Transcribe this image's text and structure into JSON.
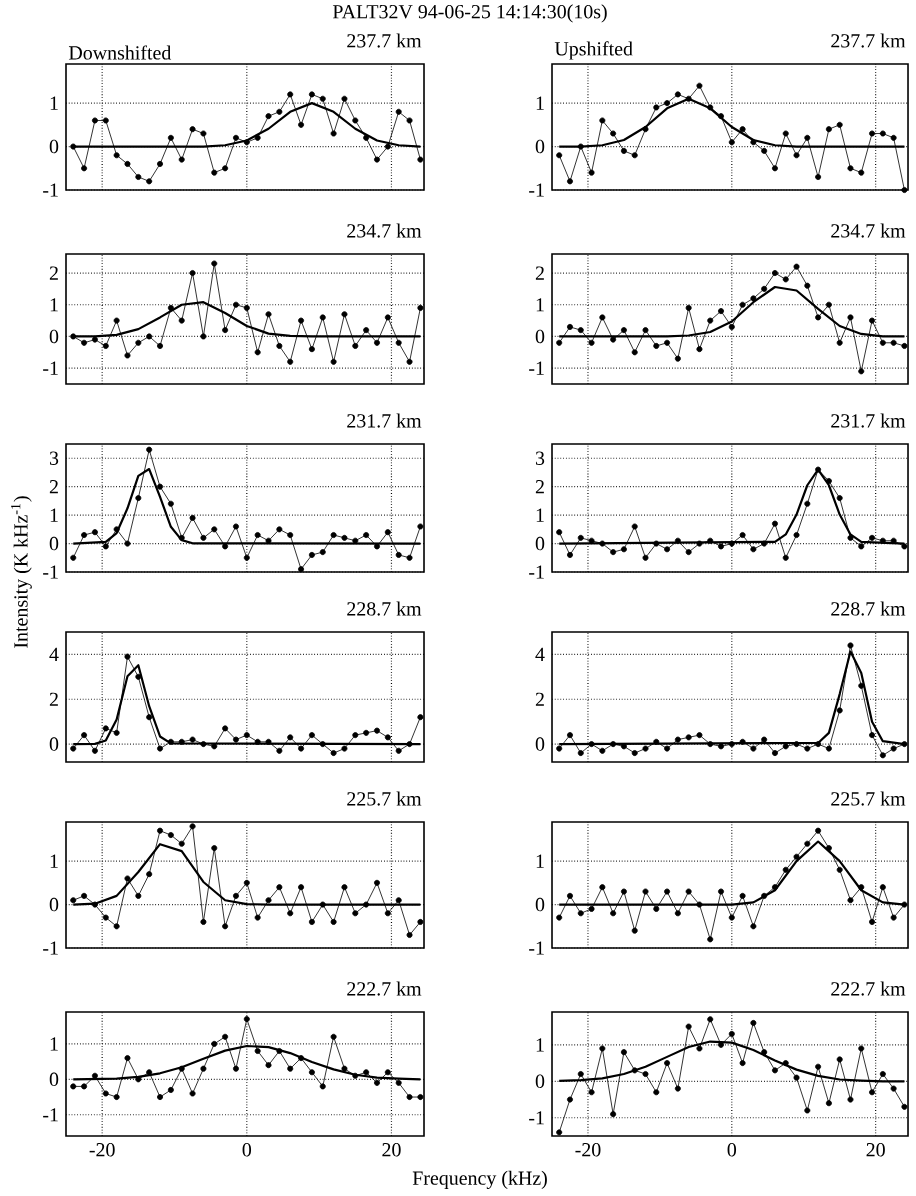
{
  "chart_data": [
    {
      "type": "line",
      "title": "237.7 km",
      "annotations": [
        "PALT32V 94-06-25 14:14:30(10s)",
        "Downshifted"
      ],
      "xlim": [
        -25,
        24.5
      ],
      "ylim": [
        -1,
        1.9
      ],
      "xticks": [
        -20,
        0,
        20
      ],
      "yticks": [
        -1,
        0,
        1
      ],
      "grid": true,
      "tick_labels": "y",
      "x": [
        -24,
        -22.5,
        -21,
        -19.5,
        -18,
        -16.5,
        -15,
        -13.5,
        -12,
        -10.5,
        -9,
        -7.5,
        -6,
        -4.5,
        -3,
        -1.5,
        0,
        1.5,
        3,
        4.5,
        6,
        7.5,
        9,
        10.5,
        12,
        13.5,
        15,
        16.5,
        18,
        19.5,
        21,
        22.5,
        24
      ],
      "series": [
        {
          "type": "line",
          "color": "#000000",
          "marker": "circle",
          "values": [
            0.0,
            -0.5,
            0.6,
            0.6,
            -0.2,
            -0.4,
            -0.7,
            -0.8,
            -0.4,
            0.2,
            -0.3,
            0.4,
            0.3,
            -0.6,
            -0.5,
            0.2,
            0.1,
            0.2,
            0.7,
            0.8,
            1.2,
            0.5,
            1.2,
            1.1,
            0.3,
            1.1,
            0.6,
            0.2,
            -0.3,
            0.0,
            0.8,
            0.6,
            -0.3
          ]
        },
        {
          "type": "line",
          "color": "#000000",
          "marker": "none",
          "x": [
            -24,
            -21,
            -18,
            -15,
            -12,
            -9,
            -6,
            -3,
            0,
            3,
            6,
            9,
            12,
            15,
            18,
            21,
            24
          ],
          "values": [
            0,
            0,
            0,
            0,
            0,
            0,
            0,
            0.03,
            0.14,
            0.41,
            0.8,
            1.0,
            0.8,
            0.41,
            0.14,
            0.03,
            0
          ]
        }
      ]
    },
    {
      "type": "line",
      "title": "237.7 km",
      "annotations": [
        "Upshifted"
      ],
      "xlim": [
        -25,
        24.5
      ],
      "ylim": [
        -1,
        1.9
      ],
      "xticks": [
        -20,
        0,
        20
      ],
      "yticks": [
        -1,
        0,
        1
      ],
      "grid": true,
      "tick_labels": "y",
      "x": [
        -24,
        -22.5,
        -21,
        -19.5,
        -18,
        -16.5,
        -15,
        -13.5,
        -12,
        -10.5,
        -9,
        -7.5,
        -6,
        -4.5,
        -3,
        -1.5,
        0,
        1.5,
        3,
        4.5,
        6,
        7.5,
        9,
        10.5,
        12,
        13.5,
        15,
        16.5,
        18,
        19.5,
        21,
        22.5,
        24
      ],
      "series": [
        {
          "type": "line",
          "color": "#000000",
          "marker": "circle",
          "values": [
            -0.2,
            -0.8,
            0.0,
            -0.6,
            0.6,
            0.3,
            -0.1,
            -0.2,
            0.4,
            0.9,
            1.0,
            1.2,
            1.1,
            1.4,
            0.9,
            0.7,
            0.1,
            0.4,
            0.1,
            -0.1,
            -0.5,
            0.3,
            -0.2,
            0.2,
            -0.7,
            0.4,
            0.5,
            -0.5,
            -0.6,
            0.3,
            0.3,
            0.2,
            -1.0
          ]
        },
        {
          "type": "line",
          "color": "#000000",
          "marker": "none",
          "x": [
            -24,
            -21,
            -18,
            -15,
            -12,
            -9,
            -6,
            -3,
            0,
            3,
            6,
            9,
            12,
            15,
            18,
            21,
            24
          ],
          "values": [
            0,
            0,
            0.03,
            0.15,
            0.45,
            0.88,
            1.1,
            0.88,
            0.45,
            0.15,
            0.03,
            0,
            0,
            0,
            0,
            0,
            0
          ]
        }
      ]
    },
    {
      "type": "line",
      "title": "234.7 km",
      "xlim": [
        -25,
        24.5
      ],
      "ylim": [
        -1.5,
        2.6
      ],
      "xticks": [
        -20,
        0,
        20
      ],
      "yticks": [
        -1,
        0,
        1,
        2
      ],
      "grid": true,
      "tick_labels": "y",
      "x": [
        -24,
        -22.5,
        -21,
        -19.5,
        -18,
        -16.5,
        -15,
        -13.5,
        -12,
        -10.5,
        -9,
        -7.5,
        -6,
        -4.5,
        -3,
        -1.5,
        0,
        1.5,
        3,
        4.5,
        6,
        7.5,
        9,
        10.5,
        12,
        13.5,
        15,
        16.5,
        18,
        19.5,
        21,
        22.5,
        24
      ],
      "series": [
        {
          "type": "line",
          "color": "#000000",
          "marker": "circle",
          "values": [
            0.0,
            -0.2,
            -0.1,
            -0.3,
            0.5,
            -0.6,
            -0.2,
            0.0,
            -0.3,
            0.9,
            0.5,
            2.0,
            0.0,
            2.3,
            0.2,
            1.0,
            0.9,
            -0.5,
            0.7,
            -0.3,
            -0.8,
            0.5,
            -0.4,
            0.6,
            -0.8,
            0.7,
            -0.3,
            0.2,
            -0.2,
            0.6,
            -0.2,
            -0.8,
            0.9
          ]
        },
        {
          "type": "line",
          "color": "#000000",
          "marker": "none",
          "x": [
            -24,
            -21,
            -18,
            -15,
            -12,
            -9,
            -6,
            -3,
            0,
            3,
            6,
            9,
            12,
            15,
            18,
            21,
            24
          ],
          "values": [
            0,
            0,
            0.05,
            0.23,
            0.6,
            1.0,
            1.08,
            0.74,
            0.33,
            0.09,
            0.02,
            0,
            0,
            0,
            0,
            0,
            0
          ]
        }
      ]
    },
    {
      "type": "line",
      "title": "234.7 km",
      "xlim": [
        -25,
        24.5
      ],
      "ylim": [
        -1.5,
        2.6
      ],
      "xticks": [
        -20,
        0,
        20
      ],
      "yticks": [
        -1,
        0,
        1,
        2
      ],
      "grid": true,
      "tick_labels": "y",
      "x": [
        -24,
        -22.5,
        -21,
        -19.5,
        -18,
        -16.5,
        -15,
        -13.5,
        -12,
        -10.5,
        -9,
        -7.5,
        -6,
        -4.5,
        -3,
        -1.5,
        0,
        1.5,
        3,
        4.5,
        6,
        7.5,
        9,
        10.5,
        12,
        13.5,
        15,
        16.5,
        18,
        19.5,
        21,
        22.5,
        24
      ],
      "series": [
        {
          "type": "line",
          "color": "#000000",
          "marker": "circle",
          "values": [
            -0.2,
            0.3,
            0.2,
            -0.2,
            0.6,
            -0.1,
            0.2,
            -0.5,
            0.2,
            -0.3,
            -0.2,
            -0.7,
            0.9,
            -0.4,
            0.5,
            0.8,
            0.3,
            1.0,
            1.2,
            1.5,
            2.0,
            1.8,
            2.2,
            1.6,
            0.6,
            1.0,
            -0.2,
            0.6,
            -1.1,
            0.5,
            -0.2,
            -0.2,
            -0.3
          ]
        },
        {
          "type": "line",
          "color": "#000000",
          "marker": "none",
          "x": [
            -24,
            -21,
            -18,
            -15,
            -12,
            -9,
            -6,
            -3,
            0,
            3,
            6,
            9,
            12,
            15,
            18,
            21,
            24
          ],
          "values": [
            0,
            0,
            0,
            0,
            0,
            0,
            0.03,
            0.14,
            0.47,
            1.08,
            1.56,
            1.45,
            0.87,
            0.33,
            0.08,
            0,
            0
          ]
        }
      ]
    },
    {
      "type": "line",
      "title": "231.7 km",
      "ylabel": "Intensity (K kHz$^{-1}$)",
      "xlim": [
        -25,
        24.5
      ],
      "ylim": [
        -1,
        3.5
      ],
      "xticks": [
        -20,
        0,
        20
      ],
      "yticks": [
        -1,
        0,
        1,
        2,
        3
      ],
      "grid": true,
      "tick_labels": "y",
      "x": [
        -24,
        -22.5,
        -21,
        -19.5,
        -18,
        -16.5,
        -15,
        -13.5,
        -12,
        -10.5,
        -9,
        -7.5,
        -6,
        -4.5,
        -3,
        -1.5,
        0,
        1.5,
        3,
        4.5,
        6,
        7.5,
        9,
        10.5,
        12,
        13.5,
        15,
        16.5,
        18,
        19.5,
        21,
        22.5,
        24
      ],
      "series": [
        {
          "type": "line",
          "color": "#000000",
          "marker": "circle",
          "values": [
            -0.5,
            0.3,
            0.4,
            -0.1,
            0.5,
            0.0,
            1.6,
            3.3,
            2.0,
            1.4,
            0.2,
            0.9,
            0.2,
            0.5,
            -0.1,
            0.6,
            -0.5,
            0.3,
            0.1,
            0.5,
            0.3,
            -0.9,
            -0.4,
            -0.3,
            0.3,
            0.2,
            0.1,
            0.3,
            -0.1,
            0.4,
            -0.4,
            -0.5,
            0.6
          ]
        },
        {
          "type": "line",
          "color": "#000000",
          "marker": "none",
          "x": [
            -24,
            -19.5,
            -18,
            -16.5,
            -15,
            -13.5,
            -12,
            -10.5,
            -9,
            -7.5,
            24
          ],
          "values": [
            0,
            0.06,
            0.37,
            1.24,
            2.38,
            2.62,
            1.64,
            0.59,
            0.12,
            0.01,
            0
          ]
        }
      ]
    },
    {
      "type": "line",
      "title": "231.7 km",
      "xlim": [
        -25,
        24.5
      ],
      "ylim": [
        -1,
        3.5
      ],
      "xticks": [
        -20,
        0,
        20
      ],
      "yticks": [
        -1,
        0,
        1,
        2,
        3
      ],
      "grid": true,
      "tick_labels": "y",
      "x": [
        -24,
        -22.5,
        -21,
        -19.5,
        -18,
        -16.5,
        -15,
        -13.5,
        -12,
        -10.5,
        -9,
        -7.5,
        -6,
        -4.5,
        -3,
        -1.5,
        0,
        1.5,
        3,
        4.5,
        6,
        7.5,
        9,
        10.5,
        12,
        13.5,
        15,
        16.5,
        18,
        19.5,
        21,
        22.5,
        24
      ],
      "series": [
        {
          "type": "line",
          "color": "#000000",
          "marker": "circle",
          "values": [
            0.4,
            -0.4,
            0.2,
            0.1,
            0.0,
            -0.3,
            -0.2,
            0.6,
            -0.5,
            0.0,
            -0.2,
            0.1,
            -0.3,
            0.0,
            0.1,
            -0.1,
            0.0,
            0.3,
            -0.2,
            0.0,
            0.7,
            -0.5,
            0.3,
            1.4,
            2.6,
            2.2,
            1.6,
            0.2,
            -0.1,
            0.2,
            0.1,
            0.1,
            -0.1
          ]
        },
        {
          "type": "line",
          "color": "#000000",
          "marker": "none",
          "x": [
            -24,
            6,
            7.5,
            9,
            10.5,
            12,
            13.5,
            15,
            16.5,
            18,
            24
          ],
          "values": [
            0,
            0.06,
            0.32,
            1.02,
            2.05,
            2.6,
            2.05,
            1.02,
            0.32,
            0.06,
            0
          ]
        }
      ]
    },
    {
      "type": "line",
      "title": "228.7 km",
      "xlim": [
        -25,
        24.5
      ],
      "ylim": [
        -0.8,
        5
      ],
      "xticks": [
        -20,
        0,
        20
      ],
      "yticks": [
        0,
        2,
        4
      ],
      "grid": true,
      "tick_labels": "y",
      "x": [
        -24,
        -22.5,
        -21,
        -19.5,
        -18,
        -16.5,
        -15,
        -13.5,
        -12,
        -10.5,
        -9,
        -7.5,
        -6,
        -4.5,
        -3,
        -1.5,
        0,
        1.5,
        3,
        4.5,
        6,
        7.5,
        9,
        10.5,
        12,
        13.5,
        15,
        16.5,
        18,
        19.5,
        21,
        22.5,
        24
      ],
      "series": [
        {
          "type": "line",
          "color": "#000000",
          "marker": "circle",
          "values": [
            -0.2,
            0.4,
            -0.3,
            0.7,
            0.5,
            3.9,
            3.0,
            1.2,
            -0.2,
            0.1,
            0.1,
            0.2,
            0.0,
            -0.1,
            0.7,
            0.2,
            0.4,
            0.1,
            0.1,
            -0.3,
            0.3,
            -0.2,
            0.4,
            0.0,
            -0.4,
            -0.2,
            0.4,
            0.5,
            0.6,
            0.3,
            -0.3,
            0.0,
            1.2
          ]
        },
        {
          "type": "line",
          "color": "#000000",
          "marker": "none",
          "x": [
            -24,
            -21,
            -19.5,
            -18,
            -16.5,
            -15,
            -13.5,
            -12,
            -10.5,
            24
          ],
          "values": [
            0,
            0.01,
            0.16,
            1.1,
            3.03,
            3.52,
            1.69,
            0.34,
            0.03,
            0
          ]
        }
      ]
    },
    {
      "type": "line",
      "title": "228.7 km",
      "xlim": [
        -25,
        24.5
      ],
      "ylim": [
        -0.8,
        5
      ],
      "xticks": [
        -20,
        0,
        20
      ],
      "yticks": [
        0,
        2,
        4
      ],
      "grid": true,
      "tick_labels": "y",
      "x": [
        -24,
        -22.5,
        -21,
        -19.5,
        -18,
        -16.5,
        -15,
        -13.5,
        -12,
        -10.5,
        -9,
        -7.5,
        -6,
        -4.5,
        -3,
        -1.5,
        0,
        1.5,
        3,
        4.5,
        6,
        7.5,
        9,
        10.5,
        12,
        13.5,
        15,
        16.5,
        18,
        19.5,
        21,
        22.5,
        24
      ],
      "series": [
        {
          "type": "line",
          "color": "#000000",
          "marker": "circle",
          "values": [
            -0.2,
            0.4,
            -0.4,
            0.0,
            -0.3,
            0.0,
            -0.1,
            -0.4,
            -0.2,
            0.1,
            -0.2,
            0.2,
            0.3,
            0.4,
            0.0,
            -0.1,
            0.0,
            0.1,
            -0.2,
            0.2,
            -0.4,
            -0.1,
            0.0,
            -0.2,
            0.0,
            -0.2,
            1.5,
            4.4,
            2.6,
            0.4,
            -0.5,
            -0.2,
            0.0
          ]
        },
        {
          "type": "line",
          "color": "#000000",
          "marker": "none",
          "x": [
            -24,
            12,
            13.5,
            15,
            16.5,
            18,
            19.5,
            21,
            24
          ],
          "values": [
            0,
            0.05,
            0.5,
            2.23,
            4.13,
            3.17,
            1.0,
            0.13,
            0
          ]
        }
      ]
    },
    {
      "type": "line",
      "title": "225.7 km",
      "xlim": [
        -25,
        24.5
      ],
      "ylim": [
        -1,
        1.9
      ],
      "xticks": [
        -20,
        0,
        20
      ],
      "yticks": [
        -1,
        0,
        1
      ],
      "grid": true,
      "tick_labels": "y",
      "x": [
        -24,
        -22.5,
        -21,
        -19.5,
        -18,
        -16.5,
        -15,
        -13.5,
        -12,
        -10.5,
        -9,
        -7.5,
        -6,
        -4.5,
        -3,
        -1.5,
        0,
        1.5,
        3,
        4.5,
        6,
        7.5,
        9,
        10.5,
        12,
        13.5,
        15,
        16.5,
        18,
        19.5,
        21,
        22.5,
        24
      ],
      "series": [
        {
          "type": "line",
          "color": "#000000",
          "marker": "circle",
          "values": [
            0.1,
            0.2,
            0.0,
            -0.3,
            -0.5,
            0.6,
            0.2,
            0.7,
            1.7,
            1.6,
            1.4,
            1.8,
            -0.4,
            1.3,
            -0.5,
            0.2,
            0.5,
            -0.3,
            0.1,
            0.4,
            -0.2,
            0.4,
            -0.4,
            0.0,
            -0.4,
            0.4,
            -0.2,
            0.0,
            0.5,
            -0.2,
            0.1,
            -0.7,
            -0.4
          ]
        },
        {
          "type": "line",
          "color": "#000000",
          "marker": "none",
          "x": [
            -24,
            -21,
            -18,
            -15,
            -12,
            -9,
            -6,
            -3,
            0,
            3,
            6,
            9,
            12,
            15,
            18,
            21,
            24
          ],
          "values": [
            0,
            0.02,
            0.2,
            0.75,
            1.39,
            1.23,
            0.52,
            0.1,
            0.01,
            0,
            0,
            0,
            0,
            0,
            0,
            0,
            0
          ]
        }
      ]
    },
    {
      "type": "line",
      "title": "225.7 km",
      "xlim": [
        -25,
        24.5
      ],
      "ylim": [
        -1,
        1.9
      ],
      "xticks": [
        -20,
        0,
        20
      ],
      "yticks": [
        -1,
        0,
        1
      ],
      "grid": true,
      "tick_labels": "y",
      "x": [
        -24,
        -22.5,
        -21,
        -19.5,
        -18,
        -16.5,
        -15,
        -13.5,
        -12,
        -10.5,
        -9,
        -7.5,
        -6,
        -4.5,
        -3,
        -1.5,
        0,
        1.5,
        3,
        4.5,
        6,
        7.5,
        9,
        10.5,
        12,
        13.5,
        15,
        16.5,
        18,
        19.5,
        21,
        22.5,
        24
      ],
      "series": [
        {
          "type": "line",
          "color": "#000000",
          "marker": "circle",
          "values": [
            -0.3,
            0.2,
            -0.2,
            -0.1,
            0.4,
            -0.2,
            0.3,
            -0.6,
            0.3,
            -0.1,
            0.3,
            -0.2,
            0.3,
            0.0,
            -0.8,
            0.3,
            -0.3,
            0.2,
            -0.5,
            0.2,
            0.4,
            0.8,
            1.1,
            1.4,
            1.7,
            1.3,
            0.8,
            0.1,
            0.4,
            -0.4,
            0.4,
            -0.3,
            0.0
          ]
        },
        {
          "type": "line",
          "color": "#000000",
          "marker": "none",
          "x": [
            -24,
            -21,
            -18,
            -15,
            -12,
            -9,
            -6,
            -3,
            0,
            3,
            6,
            9,
            12,
            15,
            18,
            21,
            24
          ],
          "values": [
            0,
            0,
            0,
            0,
            0,
            0,
            0,
            0,
            0,
            0.05,
            0.33,
            1.0,
            1.45,
            1.0,
            0.33,
            0.05,
            0
          ]
        }
      ]
    },
    {
      "type": "line",
      "title": "222.7 km",
      "xlabel": "Frequency (kHz)",
      "xlim": [
        -25,
        24.5
      ],
      "ylim": [
        -1.6,
        1.9
      ],
      "xticks": [
        -20,
        0,
        20
      ],
      "yticks": [
        -1,
        0,
        1
      ],
      "grid": true,
      "x": [
        -24,
        -22.5,
        -21,
        -19.5,
        -18,
        -16.5,
        -15,
        -13.5,
        -12,
        -10.5,
        -9,
        -7.5,
        -6,
        -4.5,
        -3,
        -1.5,
        0,
        1.5,
        3,
        4.5,
        6,
        7.5,
        9,
        10.5,
        12,
        13.5,
        15,
        16.5,
        18,
        19.5,
        21,
        22.5,
        24
      ],
      "series": [
        {
          "type": "line",
          "color": "#000000",
          "marker": "circle",
          "values": [
            -0.2,
            -0.2,
            0.1,
            -0.4,
            -0.5,
            0.6,
            0.0,
            0.2,
            -0.5,
            -0.3,
            0.3,
            -0.4,
            0.3,
            1.0,
            1.2,
            0.3,
            1.7,
            0.8,
            0.4,
            0.8,
            0.3,
            0.6,
            0.2,
            -0.2,
            1.2,
            0.3,
            0.1,
            0.2,
            -0.1,
            0.2,
            -0.1,
            -0.5,
            -0.5
          ]
        },
        {
          "type": "line",
          "color": "#000000",
          "marker": "none",
          "x": [
            -24,
            -21,
            -18,
            -15,
            -12,
            -9,
            -6,
            -3,
            0,
            3,
            6,
            9,
            12,
            15,
            18,
            21,
            24
          ],
          "values": [
            0,
            0.01,
            0.02,
            0.07,
            0.17,
            0.34,
            0.58,
            0.81,
            0.94,
            0.91,
            0.74,
            0.49,
            0.28,
            0.13,
            0.05,
            0.02,
            0
          ]
        }
      ]
    },
    {
      "type": "line",
      "title": "222.7 km",
      "xlim": [
        -25,
        24.5
      ],
      "ylim": [
        -1.5,
        1.9
      ],
      "xticks": [
        -20,
        0,
        20
      ],
      "yticks": [
        -1,
        0,
        1
      ],
      "grid": true,
      "x": [
        -24,
        -22.5,
        -21,
        -19.5,
        -18,
        -16.5,
        -15,
        -13.5,
        -12,
        -10.5,
        -9,
        -7.5,
        -6,
        -4.5,
        -3,
        -1.5,
        0,
        1.5,
        3,
        4.5,
        6,
        7.5,
        9,
        10.5,
        12,
        13.5,
        15,
        16.5,
        18,
        19.5,
        21,
        22.5,
        24
      ],
      "series": [
        {
          "type": "line",
          "color": "#000000",
          "marker": "circle",
          "values": [
            -1.4,
            -0.5,
            0.2,
            -0.3,
            0.9,
            -0.9,
            0.8,
            0.3,
            0.2,
            -0.3,
            0.5,
            -0.2,
            1.5,
            0.9,
            1.7,
            1.0,
            1.3,
            0.5,
            1.6,
            0.8,
            0.3,
            0.5,
            0.1,
            -0.8,
            0.4,
            -0.6,
            0.6,
            -0.5,
            0.9,
            -0.3,
            0.2,
            -0.2,
            -0.7
          ]
        },
        {
          "type": "line",
          "color": "#000000",
          "marker": "none",
          "x": [
            -24,
            -21,
            -18,
            -15,
            -12,
            -9,
            -6,
            -3,
            0,
            3,
            6,
            9,
            12,
            15,
            18,
            21,
            24
          ],
          "values": [
            0.01,
            0.03,
            0.08,
            0.2,
            0.4,
            0.67,
            0.94,
            1.09,
            1.06,
            0.86,
            0.57,
            0.32,
            0.15,
            0.05,
            0.02,
            0,
            0
          ]
        }
      ]
    }
  ]
}
